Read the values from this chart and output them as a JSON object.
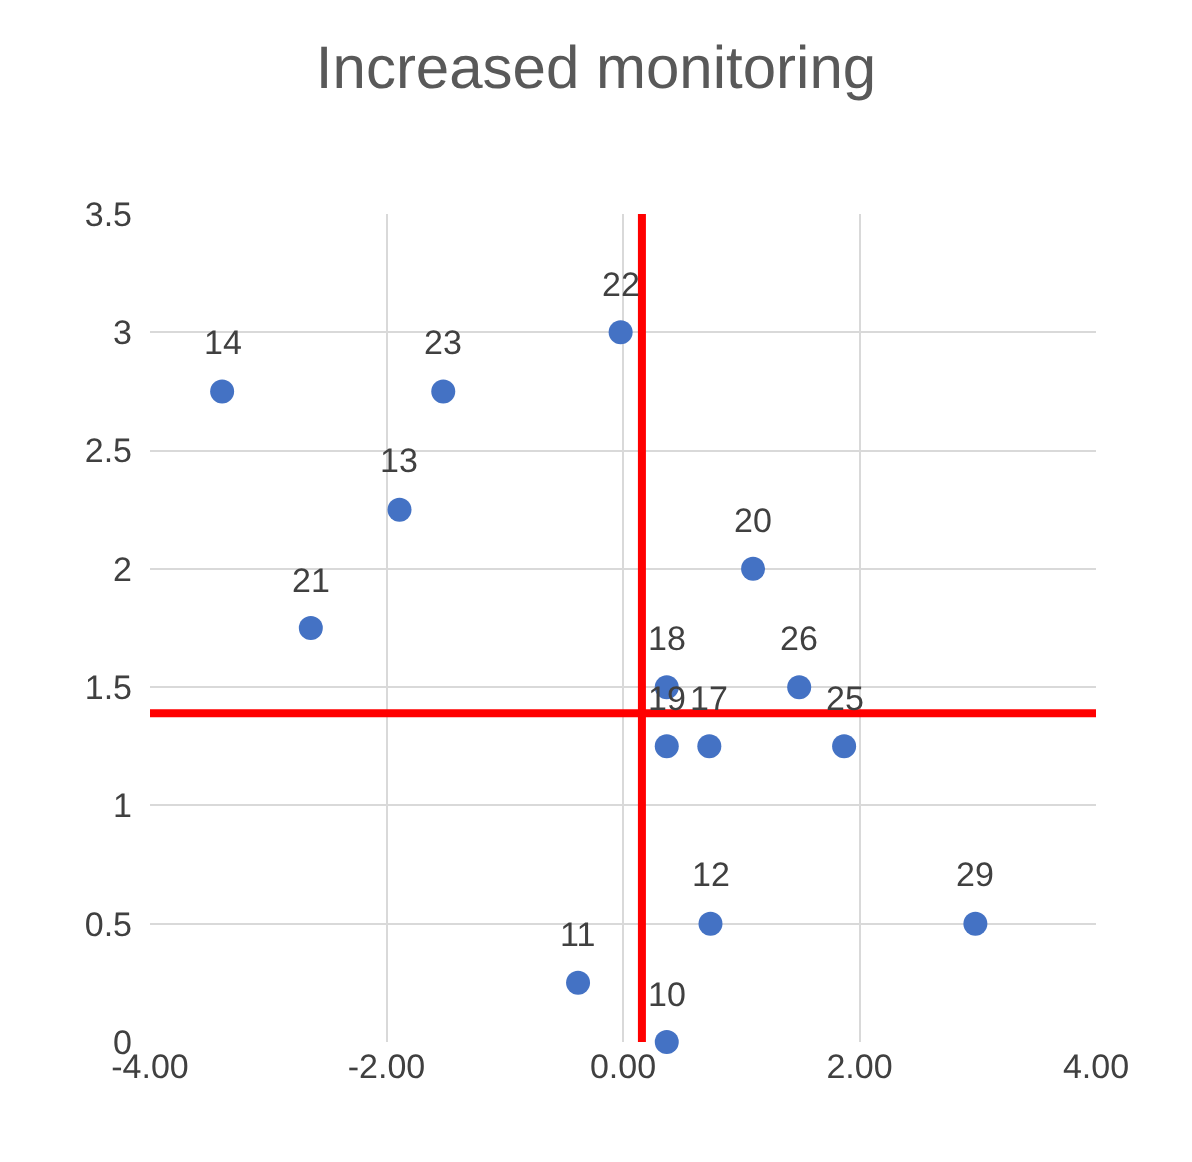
{
  "chart_data": {
    "type": "scatter",
    "title": "Increased monitoring",
    "x": [
      -3.39,
      -1.52,
      -0.02,
      -1.89,
      -2.64,
      1.1,
      1.49,
      0.37,
      0.37,
      0.73,
      1.87,
      0.74,
      2.98,
      -0.38,
      0.37
    ],
    "series": [
      {
        "color": "#4472c4",
        "values": [
          2.75,
          2.75,
          3,
          2.25,
          1.75,
          2,
          1.5,
          1.5,
          1.25,
          1.25,
          1.25,
          0.5,
          0.5,
          0.25,
          0
        ]
      }
    ],
    "annotations": [
      {
        "text": "14",
        "x": -3.39,
        "y": 2.75
      },
      {
        "text": "23",
        "x": -1.52,
        "y": 2.75
      },
      {
        "text": "22",
        "x": -0.02,
        "y": 3
      },
      {
        "text": "13",
        "x": -1.89,
        "y": 2.25
      },
      {
        "text": "21",
        "x": -2.64,
        "y": 1.75
      },
      {
        "text": "20",
        "x": 1.1,
        "y": 2
      },
      {
        "text": "26",
        "x": 1.49,
        "y": 1.5
      },
      {
        "text": "18",
        "x": 0.37,
        "y": 1.5
      },
      {
        "text": "19",
        "x": 0.37,
        "y": 1.25
      },
      {
        "text": "17",
        "x": 0.73,
        "y": 1.25
      },
      {
        "text": "25",
        "x": 1.87,
        "y": 1.25
      },
      {
        "text": "12",
        "x": 0.74,
        "y": 0.5
      },
      {
        "text": "29",
        "x": 2.98,
        "y": 0.5
      },
      {
        "text": "11",
        "x": -0.38,
        "y": 0.25
      },
      {
        "text": "10",
        "x": 0.37,
        "y": 0
      }
    ],
    "xlim": [
      -4,
      4
    ],
    "xticks": [
      {
        "value": -4,
        "label": "-4.00"
      },
      {
        "value": -2,
        "label": "-2.00"
      },
      {
        "value": 0,
        "label": "0.00"
      },
      {
        "value": 2,
        "label": "2.00"
      },
      {
        "value": 4,
        "label": "4.00"
      }
    ],
    "ylim": [
      0,
      3.5
    ],
    "yticks": [
      0,
      0.5,
      1,
      1.5,
      2,
      2.5,
      3,
      3.5
    ],
    "ref_lines": [
      {
        "axis": "x",
        "value": 0.16,
        "color": "#ff0000"
      },
      {
        "axis": "y",
        "value": 1.39,
        "color": "#ff0000"
      }
    ],
    "grid": true,
    "marker": "circle"
  }
}
